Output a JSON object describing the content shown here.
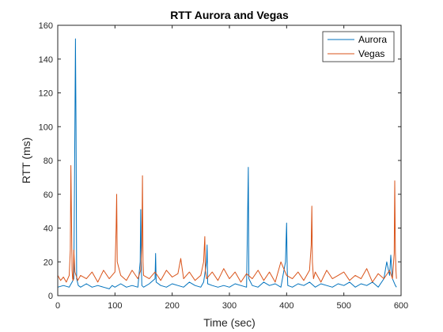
{
  "chart_data": {
    "type": "line",
    "title": "RTT Aurora and Vegas",
    "xlabel": "Time (sec)",
    "ylabel": "RTT (ms)",
    "xlim": [
      0,
      600
    ],
    "ylim": [
      0,
      160
    ],
    "x_ticks": [
      0,
      100,
      200,
      300,
      400,
      500,
      600
    ],
    "y_ticks": [
      0,
      20,
      40,
      60,
      80,
      100,
      120,
      140,
      160
    ],
    "grid": false,
    "legend_position": "top-right",
    "series": [
      {
        "name": "Aurora",
        "color": "#0072BD",
        "x": [
          0,
          10,
          20,
          25,
          28,
          30,
          31,
          32,
          33,
          36,
          40,
          50,
          60,
          70,
          80,
          90,
          95,
          100,
          110,
          120,
          130,
          140,
          144,
          145,
          146,
          147,
          150,
          160,
          170,
          171,
          172,
          180,
          190,
          200,
          210,
          220,
          230,
          240,
          250,
          255,
          260,
          261,
          262,
          270,
          280,
          290,
          300,
          310,
          320,
          330,
          332,
          333,
          334,
          340,
          350,
          360,
          370,
          380,
          390,
          398,
          400,
          401,
          402,
          410,
          420,
          430,
          440,
          450,
          460,
          470,
          480,
          490,
          500,
          510,
          520,
          530,
          540,
          550,
          560,
          570,
          575,
          580,
          582,
          585,
          590,
          592
        ],
        "y": [
          5,
          6,
          5,
          8,
          10,
          100,
          152,
          100,
          10,
          6,
          5,
          7,
          5,
          6,
          5,
          4,
          6,
          5,
          7,
          5,
          6,
          5,
          20,
          51,
          20,
          6,
          5,
          7,
          10,
          25,
          8,
          6,
          5,
          7,
          6,
          5,
          8,
          6,
          5,
          8,
          20,
          30,
          7,
          6,
          5,
          6,
          5,
          7,
          6,
          5,
          50,
          76,
          10,
          6,
          5,
          8,
          6,
          7,
          5,
          20,
          43,
          15,
          6,
          5,
          7,
          6,
          8,
          5,
          7,
          6,
          5,
          7,
          6,
          8,
          5,
          7,
          6,
          8,
          5,
          10,
          20,
          12,
          24,
          10,
          6,
          5
        ]
      },
      {
        "name": "Vegas",
        "color": "#D95319",
        "x": [
          0,
          5,
          10,
          15,
          20,
          22,
          23,
          24,
          25,
          26,
          27,
          28,
          30,
          35,
          40,
          50,
          60,
          70,
          80,
          90,
          100,
          102,
          103,
          104,
          110,
          120,
          130,
          140,
          145,
          147,
          148,
          149,
          150,
          160,
          170,
          180,
          190,
          200,
          210,
          215,
          220,
          230,
          240,
          250,
          255,
          257,
          258,
          260,
          270,
          280,
          290,
          300,
          310,
          320,
          330,
          340,
          350,
          360,
          370,
          380,
          390,
          400,
          410,
          420,
          430,
          440,
          443,
          444,
          445,
          447,
          450,
          460,
          470,
          480,
          490,
          500,
          510,
          520,
          530,
          540,
          550,
          560,
          570,
          580,
          585,
          588,
          589,
          590,
          591,
          592
        ],
        "y": [
          12,
          9,
          11,
          8,
          12,
          27,
          77,
          45,
          15,
          10,
          9,
          27,
          14,
          9,
          12,
          10,
          14,
          8,
          15,
          10,
          14,
          40,
          60,
          20,
          12,
          9,
          15,
          10,
          15,
          30,
          71,
          20,
          12,
          10,
          14,
          9,
          15,
          11,
          13,
          22,
          10,
          14,
          9,
          12,
          20,
          35,
          15,
          10,
          14,
          9,
          16,
          10,
          14,
          8,
          13,
          10,
          15,
          9,
          14,
          8,
          20,
          12,
          10,
          14,
          9,
          15,
          30,
          53,
          20,
          10,
          14,
          8,
          15,
          10,
          12,
          14,
          9,
          12,
          10,
          16,
          8,
          13,
          10,
          15,
          10,
          25,
          68,
          26,
          15,
          10
        ]
      }
    ]
  }
}
